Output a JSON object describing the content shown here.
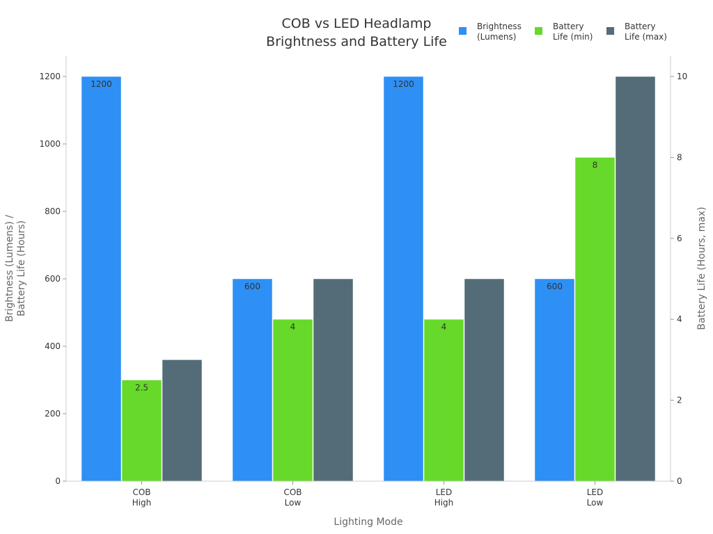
{
  "chart_data": {
    "type": "bar",
    "title": [
      "COB vs LED Headlamp",
      "Brightness and Battery Life"
    ],
    "xlabel": "Lighting Mode",
    "ylabel": [
      "Brightness (Lumens) /",
      "Battery Life (Hours)"
    ],
    "y2label": "Battery Life (Hours, max)",
    "categories": [
      [
        "COB",
        "High"
      ],
      [
        "COB",
        "Low"
      ],
      [
        "LED",
        "High"
      ],
      [
        "LED",
        "Low"
      ]
    ],
    "ylim": [
      0,
      1200
    ],
    "y2lim": [
      0,
      10
    ],
    "yticks": [
      0,
      200,
      400,
      600,
      800,
      1000,
      1200
    ],
    "y2ticks": [
      0,
      2,
      4,
      6,
      8,
      10
    ],
    "legend_position": "top-right",
    "grid": false,
    "series": [
      {
        "name": [
          "Brightness",
          "(Lumens)"
        ],
        "axis": "left",
        "values": [
          1200,
          600,
          1200,
          600
        ],
        "labels": [
          "1200",
          "600",
          "1200",
          "600"
        ],
        "color": "#2e8ff5"
      },
      {
        "name": [
          "Battery",
          "Life (min)"
        ],
        "axis": "right",
        "values": [
          2.5,
          4,
          4,
          8
        ],
        "labels": [
          "2.5",
          "4",
          "4",
          "8"
        ],
        "color": "#66d92a"
      },
      {
        "name": [
          "Battery",
          "Life (max)"
        ],
        "axis": "right",
        "values": [
          3,
          5,
          5,
          10
        ],
        "labels": [],
        "color": "#546c77"
      }
    ]
  }
}
